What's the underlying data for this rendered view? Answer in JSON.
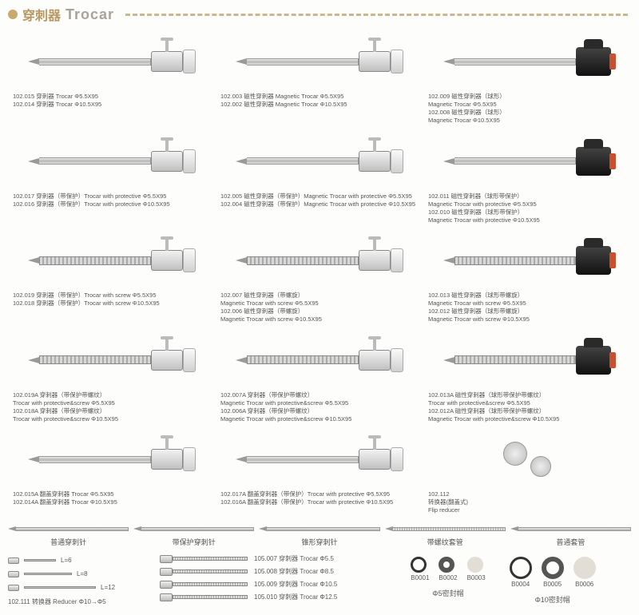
{
  "header": {
    "title_cn": "穿刺器",
    "title_en": "Trocar"
  },
  "colors": {
    "accent": "#c9a96e",
    "text": "#555555"
  },
  "products": [
    {
      "type": "silver",
      "lines": [
        "102.015 穿刺器 Trocar Φ5.5X95",
        "102.014 穿刺器 Trocar Φ10.5X95"
      ]
    },
    {
      "type": "silver",
      "lines": [
        "102.003 磁性穿刺器 Magnetic Trocar Φ5.5X95",
        "102.002 磁性穿刺器 Magnetic Trocar Φ10.5X95"
      ]
    },
    {
      "type": "black",
      "lines": [
        "102.009 磁性穿刺器（球形）",
        "Magnetic Trocar Φ5.5X95",
        "102.008 磁性穿刺器（球形）",
        "Magnetic Trocar Φ10.5X95"
      ]
    },
    {
      "type": "silver",
      "lines": [
        "102.017 穿刺器（带保护）Trocar with protective Φ5.5X95",
        "102.016 穿刺器（带保护）Trocar with protective Φ10.5X95"
      ]
    },
    {
      "type": "silver",
      "lines": [
        "102.005 磁性穿刺器（带保护）Magnetic Trocar with protective Φ5.5X95",
        "102.004 磁性穿刺器（带保护）Magnetic Trocar with protective Φ10.5X95"
      ]
    },
    {
      "type": "black",
      "lines": [
        "102.011 磁性穿刺器（球形带保护）",
        "Magnetic Trocar with protective Φ5.5X95",
        "102.010 磁性穿刺器（球形带保护）",
        "Magnetic Trocar with protective Φ10.5X95"
      ]
    },
    {
      "type": "silver-screw",
      "lines": [
        "102.019 穿刺器（带保护）Trocar with screw Φ5.5X95",
        "102.018 穿刺器（带保护）Trocar with screw Φ10.5X95"
      ]
    },
    {
      "type": "silver-screw",
      "lines": [
        "102.007 磁性穿刺器（带螺旋）",
        "Magnetic Trocar with screw Φ5.5X95",
        "102.006 磁性穿刺器（带螺旋）",
        "Magnetic Trocar with screw Φ10.5X95"
      ]
    },
    {
      "type": "black-screw",
      "lines": [
        "102.013 磁性穿刺器（球形带螺旋）",
        "Magnetic Trocar with screw Φ5.5X95",
        "102.012 磁性穿刺器（球形带螺旋）",
        "Magnetic Trocar with screw Φ10.5X95"
      ]
    },
    {
      "type": "silver-screw",
      "lines": [
        "102.019A 穿刺器（带保护带螺纹）",
        "Trocar with protective&screw Φ5.5X95",
        "102.018A 穿刺器（带保护带螺纹）",
        "Trocar with protective&screw Φ10.5X95"
      ]
    },
    {
      "type": "silver-screw",
      "lines": [
        "102.007A 穿刺器（带保护带螺纹）",
        "Magnetic Trocar with protective&screw Φ5.5X95",
        "102.006A 穿刺器（带保护带螺纹）",
        "Magnetic Trocar with protective&screw Φ10.5X95"
      ]
    },
    {
      "type": "black-screw",
      "lines": [
        "102.013A 磁性穿刺器（球形带保护带螺纹）",
        "Trocar with protective&screw Φ5.5X95",
        "102.012A 磁性穿刺器（球形带保护带螺纹）",
        "Magnetic Trocar with protective&screw Φ10.5X95"
      ]
    },
    {
      "type": "silver-wide",
      "lines": [
        "102.015A 翻盖穿刺器 Trocar Φ5.5X95",
        "102.014A 翻盖穿刺器 Trocar Φ10.5X95"
      ]
    },
    {
      "type": "silver-wide",
      "lines": [
        "102.017A 翻盖穿刺器（带保护）Trocar with protective Φ5.5X95",
        "102.016A 翻盖穿刺器（带保护）Trocar with protective Φ10.5X95"
      ]
    },
    {
      "type": "flip",
      "lines": [
        "102.112",
        "转换器(翻盖式)",
        "Flip reducer"
      ]
    }
  ],
  "needles": [
    {
      "label": "普通穿刺针",
      "variant": "plain"
    },
    {
      "label": "带保护穿刺针",
      "variant": "plain"
    },
    {
      "label": "锥形穿刺针",
      "variant": "plain"
    },
    {
      "label": "带螺纹套管",
      "variant": "screw"
    },
    {
      "label": "普通套管",
      "variant": "plain"
    }
  ],
  "reducers": {
    "rows": [
      {
        "length_label": "L=6",
        "len": 40
      },
      {
        "length_label": "L=8",
        "len": 60
      },
      {
        "length_label": "L=12",
        "len": 90
      }
    ],
    "caption": "102.111 转换器 Reducer Φ10→Φ5"
  },
  "trocar_list": [
    "105.007 穿刺器 Trocar Φ5.5",
    "105.008 穿刺器 Trocar Φ8.5",
    "105.009 穿刺器 Trocar Φ10.5",
    "105.010 穿刺器 Trocar Φ12.5"
  ],
  "seals": {
    "group5": {
      "codes": [
        "B0001",
        "B0002",
        "B0003"
      ],
      "title": "Φ5密封帽"
    },
    "group10": {
      "codes": [
        "B0004",
        "B0005",
        "B0006"
      ],
      "title": "Φ10密封帽"
    }
  }
}
